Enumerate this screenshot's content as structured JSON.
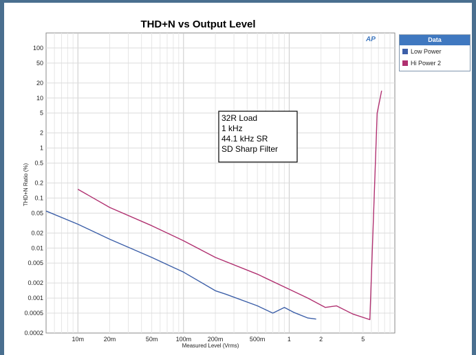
{
  "chart_data": {
    "type": "line",
    "title": "THD+N vs Output Level",
    "xlabel": "Measured Level (Vrms)",
    "ylabel": "THD+N Ratio (%)",
    "xscale": "log",
    "yscale": "log",
    "xlim": [
      0.005,
      10
    ],
    "ylim": [
      0.0002,
      200
    ],
    "grid": true,
    "x_ticks": [
      {
        "v": 0.01,
        "label": "10m"
      },
      {
        "v": 0.02,
        "label": "20m"
      },
      {
        "v": 0.05,
        "label": "50m"
      },
      {
        "v": 0.1,
        "label": "100m"
      },
      {
        "v": 0.2,
        "label": "200m"
      },
      {
        "v": 0.5,
        "label": "500m"
      },
      {
        "v": 1,
        "label": "1"
      },
      {
        "v": 2,
        "label": "2"
      },
      {
        "v": 5,
        "label": "5"
      }
    ],
    "y_ticks": [
      {
        "v": 100,
        "label": "100"
      },
      {
        "v": 50,
        "label": "50"
      },
      {
        "v": 20,
        "label": "20"
      },
      {
        "v": 10,
        "label": "10"
      },
      {
        "v": 5,
        "label": "5"
      },
      {
        "v": 2,
        "label": "2"
      },
      {
        "v": 1,
        "label": "1"
      },
      {
        "v": 0.5,
        "label": "0.5"
      },
      {
        "v": 0.2,
        "label": "0.2"
      },
      {
        "v": 0.1,
        "label": "0.1"
      },
      {
        "v": 0.05,
        "label": "0.05"
      },
      {
        "v": 0.02,
        "label": "0.02"
      },
      {
        "v": 0.01,
        "label": "0.01"
      },
      {
        "v": 0.005,
        "label": "0.005"
      },
      {
        "v": 0.002,
        "label": "0.002"
      },
      {
        "v": 0.001,
        "label": "0.001"
      },
      {
        "v": 0.0005,
        "label": "0.0005"
      },
      {
        "v": 0.0002,
        "label": "0.0002"
      }
    ],
    "series": [
      {
        "name": "Low Power",
        "color": "#3c5fa8",
        "points": [
          [
            0.005,
            0.055
          ],
          [
            0.01,
            0.03
          ],
          [
            0.02,
            0.015
          ],
          [
            0.05,
            0.0065
          ],
          [
            0.1,
            0.0033
          ],
          [
            0.2,
            0.0014
          ],
          [
            0.25,
            0.0012
          ],
          [
            0.5,
            0.0007
          ],
          [
            0.7,
            0.0005
          ],
          [
            0.9,
            0.00065
          ],
          [
            1.1,
            0.00052
          ],
          [
            1.5,
            0.0004
          ],
          [
            1.8,
            0.00038
          ]
        ]
      },
      {
        "name": "Hi Power 2",
        "color": "#b03070",
        "points": [
          [
            0.01,
            0.15
          ],
          [
            0.02,
            0.065
          ],
          [
            0.05,
            0.028
          ],
          [
            0.1,
            0.014
          ],
          [
            0.2,
            0.0065
          ],
          [
            0.5,
            0.003
          ],
          [
            1,
            0.0015
          ],
          [
            1.5,
            0.001
          ],
          [
            2.2,
            0.00065
          ],
          [
            2.8,
            0.0007
          ],
          [
            4,
            0.00048
          ],
          [
            5.8,
            0.00037
          ],
          [
            6.8,
            5
          ],
          [
            7.5,
            14
          ]
        ]
      }
    ],
    "annotation": [
      "32R Load",
      "1 kHz",
      "44.1 kHz SR",
      "SD Sharp Filter"
    ]
  },
  "legend": {
    "header": "Data",
    "items": [
      {
        "label": "Low Power",
        "color": "#3c5fa8"
      },
      {
        "label": "Hi Power 2",
        "color": "#b03070"
      }
    ]
  },
  "logo_text": "AP"
}
